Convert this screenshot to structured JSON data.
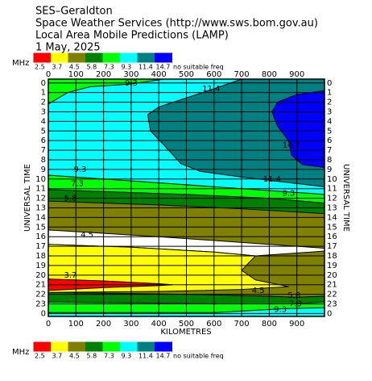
{
  "chart_data": {
    "type": "contour",
    "title": [
      "SES–Geraldton",
      "Space Weather Services (http://www.sws.bom.gov.au)",
      "Local Area Mobile Predictions (LAMP)",
      "1 May, 2025"
    ],
    "legend_unit": "MHz",
    "legend": {
      "labels": [
        "2.5",
        "3.7",
        "4.5",
        "5.8",
        "7.3",
        "9.3",
        "11.4",
        "14.7",
        "no suitable freq"
      ],
      "colors": [
        "#ff0000",
        "#ffff00",
        "#808000",
        "#008000",
        "#00ff00",
        "#00ffff",
        "#008080",
        "#0000ff",
        "#ffffff"
      ]
    },
    "xlabel": "KILOMETRES",
    "ylabel": "UNIVERSAL TIME",
    "xlim": [
      0,
      1000
    ],
    "ylim": [
      -0.4,
      24.3
    ],
    "xticks": [
      0,
      100,
      200,
      300,
      400,
      500,
      600,
      700,
      800,
      900
    ],
    "yticks": [
      0,
      1,
      2,
      3,
      4,
      5,
      6,
      7,
      8,
      9,
      10,
      11,
      12,
      13,
      14,
      15,
      16,
      17,
      18,
      19,
      20,
      21,
      22,
      23,
      {
        "value": 24,
        "label": "0"
      }
    ],
    "grid": true,
    "regions": [
      {
        "band": 2,
        "points": [
          [
            0,
            -0.4
          ],
          [
            1000,
            -0.4
          ],
          [
            1000,
            24.3
          ],
          [
            0,
            24.3
          ]
        ]
      },
      {
        "band": 3,
        "points": [
          [
            0,
            -0.4
          ],
          [
            1000,
            -0.4
          ],
          [
            1000,
            13.6
          ],
          [
            700,
            13.1
          ],
          [
            400,
            12.7
          ],
          [
            0,
            12.3
          ]
        ]
      },
      {
        "band": 3,
        "points": [
          [
            0,
            21.8
          ],
          [
            500,
            22
          ],
          [
            800,
            22.2
          ],
          [
            900,
            22.3
          ],
          [
            1000,
            22.2
          ],
          [
            1000,
            24.3
          ],
          [
            0,
            24.3
          ]
        ]
      },
      {
        "band": 4,
        "points": [
          [
            0,
            -0.4
          ],
          [
            1000,
            -0.4
          ],
          [
            1000,
            12.5
          ],
          [
            800,
            12
          ],
          [
            500,
            11.6
          ],
          [
            0,
            11.1
          ]
        ]
      },
      {
        "band": 4,
        "points": [
          [
            0,
            22.8
          ],
          [
            700,
            23
          ],
          [
            880,
            23
          ],
          [
            1000,
            22.8
          ],
          [
            1000,
            24.3
          ],
          [
            0,
            24.3
          ]
        ]
      },
      {
        "band": 5,
        "points": [
          [
            0,
            -0.4
          ],
          [
            1000,
            -0.4
          ],
          [
            1000,
            11.6
          ],
          [
            800,
            11.2
          ],
          [
            600,
            10.8
          ],
          [
            300,
            10.2
          ],
          [
            0,
            9.6
          ]
        ]
      },
      {
        "band": 5,
        "points": [
          [
            0,
            23.9
          ],
          [
            600,
            23.9
          ],
          [
            850,
            23.5
          ],
          [
            1000,
            23.4
          ],
          [
            1000,
            24.3
          ],
          [
            0,
            24.3
          ]
        ]
      },
      {
        "band": 6,
        "points": [
          [
            700,
            -0.4
          ],
          [
            1000,
            -0.4
          ],
          [
            1000,
            10.8
          ],
          [
            850,
            10.3
          ],
          [
            700,
            9.8
          ],
          [
            550,
            9.2
          ],
          [
            480,
            8.4
          ],
          [
            420,
            6.5
          ],
          [
            370,
            5
          ],
          [
            360,
            3.3
          ],
          [
            400,
            2.5
          ],
          [
            590,
            0.7
          ]
        ]
      },
      {
        "band": 7,
        "points": [
          [
            1000,
            0.8
          ],
          [
            900,
            1.2
          ],
          [
            830,
            2
          ],
          [
            810,
            3
          ],
          [
            830,
            4.5
          ],
          [
            870,
            6
          ],
          [
            880,
            7.5
          ],
          [
            920,
            8.5
          ],
          [
            1000,
            8.8
          ]
        ]
      },
      {
        "band": 4,
        "points": [
          [
            0,
            -0.4
          ],
          [
            420,
            -0.4
          ],
          [
            300,
            0.1
          ],
          [
            150,
            0.4
          ],
          [
            70,
            1
          ],
          [
            0,
            2.2
          ]
        ]
      },
      {
        "band": 8,
        "points": [
          [
            0,
            15.3
          ],
          [
            400,
            16
          ],
          [
            800,
            16.8
          ],
          [
            1000,
            17.2
          ],
          [
            1000,
            17.5
          ],
          [
            750,
            18
          ],
          [
            600,
            17.6
          ],
          [
            300,
            17.1
          ],
          [
            0,
            16.8
          ]
        ]
      },
      {
        "band": 1,
        "points": [
          [
            0,
            16.8
          ],
          [
            300,
            17.1
          ],
          [
            600,
            17.6
          ],
          [
            750,
            18
          ],
          [
            700,
            19.5
          ],
          [
            750,
            20.5
          ],
          [
            870,
            21.2
          ],
          [
            700,
            21.5
          ],
          [
            400,
            21.7
          ],
          [
            0,
            21.8
          ]
        ]
      },
      {
        "band": 0,
        "points": [
          [
            0,
            20.4
          ],
          [
            200,
            20.6
          ],
          [
            400,
            20.9
          ],
          [
            450,
            21
          ],
          [
            400,
            21.1
          ],
          [
            200,
            21.3
          ],
          [
            0,
            21.6
          ]
        ]
      }
    ],
    "annotations": [
      {
        "text": "9.3",
        "x": 300,
        "y": 0
      },
      {
        "text": "11.4",
        "x": 590,
        "y": 0.6
      },
      {
        "text": "14.7",
        "x": 880,
        "y": 6.5
      },
      {
        "text": "9.3",
        "x": 115,
        "y": 9
      },
      {
        "text": "7.3",
        "x": 105,
        "y": 10.5
      },
      {
        "text": "5.8",
        "x": 80,
        "y": 12
      },
      {
        "text": "11.4",
        "x": 810,
        "y": 10
      },
      {
        "text": "9.3",
        "x": 870,
        "y": 11.5
      },
      {
        "text": "4.5",
        "x": 140,
        "y": 15.8
      },
      {
        "text": "3.7",
        "x": 80,
        "y": 20
      },
      {
        "text": "4.5",
        "x": 760,
        "y": 21.6
      },
      {
        "text": "5.8",
        "x": 890,
        "y": 22.1
      },
      {
        "text": "7.3",
        "x": 895,
        "y": 23
      },
      {
        "text": "9.3",
        "x": 840,
        "y": 23.6
      }
    ]
  }
}
